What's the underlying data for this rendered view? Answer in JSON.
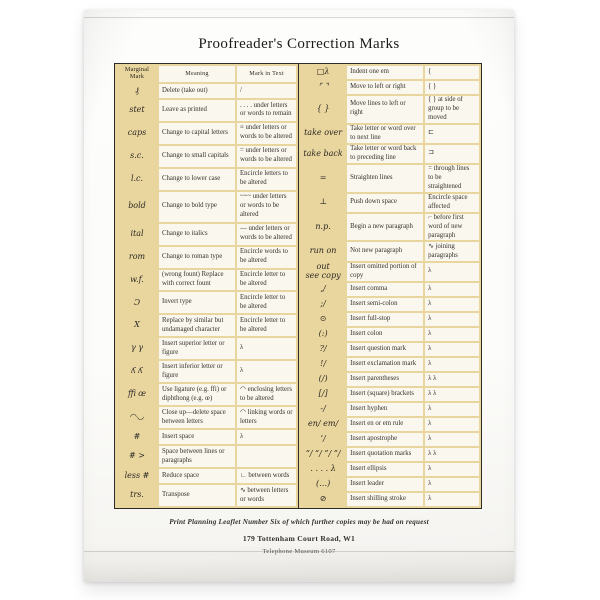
{
  "title": "Proofreader's Correction Marks",
  "colors": {
    "tan": "#e9d59e",
    "cream": "#faf7ee",
    "border": "#2e2b26",
    "ink": "#33312c"
  },
  "table": {
    "headers": [
      "Marginal Mark",
      "Meaning",
      "Mark in Text"
    ],
    "left_rows": [
      {
        "mark": "₰",
        "meaning": "Delete (take out)",
        "text_mark": "/"
      },
      {
        "mark": "stet",
        "meaning": "Leave as printed",
        "text_mark": ". . . . under letters or words to remain"
      },
      {
        "mark": "caps",
        "meaning": "Change to capital letters",
        "text_mark": "≡ under letters or words to be altered"
      },
      {
        "mark": "s.c.",
        "meaning": "Change to small capitals",
        "text_mark": "= under letters or words to be altered"
      },
      {
        "mark": "l.c.",
        "meaning": "Change to lower case",
        "text_mark": "Encircle letters to be altered"
      },
      {
        "mark": "bold",
        "meaning": "Change to bold type",
        "text_mark": "~~~ under letters or words to be altered"
      },
      {
        "mark": "ital",
        "meaning": "Change to italics",
        "text_mark": "— under letters or words to be altered"
      },
      {
        "mark": "rom",
        "meaning": "Change to roman type",
        "text_mark": "Encircle words to be altered"
      },
      {
        "mark": "w.f.",
        "meaning": "(wrong fount) Replace with correct fount",
        "text_mark": "Encircle letter to be altered"
      },
      {
        "mark": "Ɔ",
        "meaning": "Invert type",
        "text_mark": "Encircle letter to be altered"
      },
      {
        "mark": "X",
        "meaning": "Replace by similar but undamaged character",
        "text_mark": "Encircle letter to be altered"
      },
      {
        "mark": "γ γ",
        "meaning": "Insert superior letter or figure",
        "text_mark": "λ"
      },
      {
        "mark": "ʎ ʎ",
        "meaning": "Insert inferior letter or figure",
        "text_mark": "λ"
      },
      {
        "mark": "ﬃ œ",
        "meaning": "Use ligature (e.g. ffi) or diphthong (e.g. œ)",
        "text_mark": "◠ enclosing letters to be altered"
      },
      {
        "mark": "◠◡",
        "meaning": "Close up—delete space between letters",
        "text_mark": "◠ linking words or letters"
      },
      {
        "mark": "#",
        "meaning": "Insert space",
        "text_mark": "λ"
      },
      {
        "mark": "# >",
        "meaning": "Space between lines or paragraphs",
        "text_mark": ""
      },
      {
        "mark": "less #",
        "meaning": "Reduce space",
        "text_mark": "∟ between words"
      },
      {
        "mark": "trs.",
        "meaning": "Transpose",
        "text_mark": "∿ between letters or words"
      }
    ],
    "right_rows": [
      {
        "mark": "□λ",
        "meaning": "Indent one em",
        "text_mark": "{"
      },
      {
        "mark": "⌜ ⌝",
        "meaning": "Move to left or right",
        "text_mark": "{ }"
      },
      {
        "mark": "{ }",
        "meaning": "Move lines to left or right",
        "text_mark": "{ } at side of group to be moved"
      },
      {
        "mark": "take over",
        "meaning": "Take letter or word over to next line",
        "text_mark": "⊏"
      },
      {
        "mark": "take back",
        "meaning": "Take letter or word back to preceding line",
        "text_mark": "⊐"
      },
      {
        "mark": "=",
        "meaning": "Straighten lines",
        "text_mark": "= through lines to be straightened"
      },
      {
        "mark": "⊥",
        "meaning": "Push down space",
        "text_mark": "Encircle space affected"
      },
      {
        "mark": "n.p.",
        "meaning": "Begin a new paragraph",
        "text_mark": "⌐ before first word of new paragraph"
      },
      {
        "mark": "run on",
        "meaning": "Not new paragraph",
        "text_mark": "∿ joining paragraphs"
      },
      {
        "mark": "out\nsee copy",
        "meaning": "Insert omitted portion of copy",
        "text_mark": "λ"
      },
      {
        "mark": ",/",
        "meaning": "Insert comma",
        "text_mark": "λ"
      },
      {
        "mark": ";/",
        "meaning": "Insert semi-colon",
        "text_mark": "λ"
      },
      {
        "mark": "⊙",
        "meaning": "Insert full-stop",
        "text_mark": "λ"
      },
      {
        "mark": "(:)",
        "meaning": "Insert colon",
        "text_mark": "λ"
      },
      {
        "mark": "?/",
        "meaning": "Insert question mark",
        "text_mark": "λ"
      },
      {
        "mark": "!/",
        "meaning": "Insert exclamation mark",
        "text_mark": "λ"
      },
      {
        "mark": "(/)",
        "meaning": "Insert parentheses",
        "text_mark": "λ λ"
      },
      {
        "mark": "[/]",
        "meaning": "Insert (square) brackets",
        "text_mark": "λ λ"
      },
      {
        "mark": "-/",
        "meaning": "Insert hyphen",
        "text_mark": "λ"
      },
      {
        "mark": "en/ em/",
        "meaning": "Insert en or em rule",
        "text_mark": "λ"
      },
      {
        "mark": "’/",
        "meaning": "Insert apostrophe",
        "text_mark": "λ"
      },
      {
        "mark": "“/ “/ ”/ ”/",
        "meaning": "Insert quotation marks",
        "text_mark": "λ λ"
      },
      {
        "mark": ". . . . λ",
        "meaning": "Insert ellipsis",
        "text_mark": "λ"
      },
      {
        "mark": "(…)",
        "meaning": "Insert leader",
        "text_mark": "λ"
      },
      {
        "mark": "⊘",
        "meaning": "Insert shilling stroke",
        "text_mark": "λ"
      }
    ]
  },
  "footer": {
    "leaflet_note": "Print Planning Leaflet  Number Six of which further copies may be had on request",
    "address": "179 Tottenham Court Road, W1",
    "phone": "Telephone Museum 6107"
  }
}
